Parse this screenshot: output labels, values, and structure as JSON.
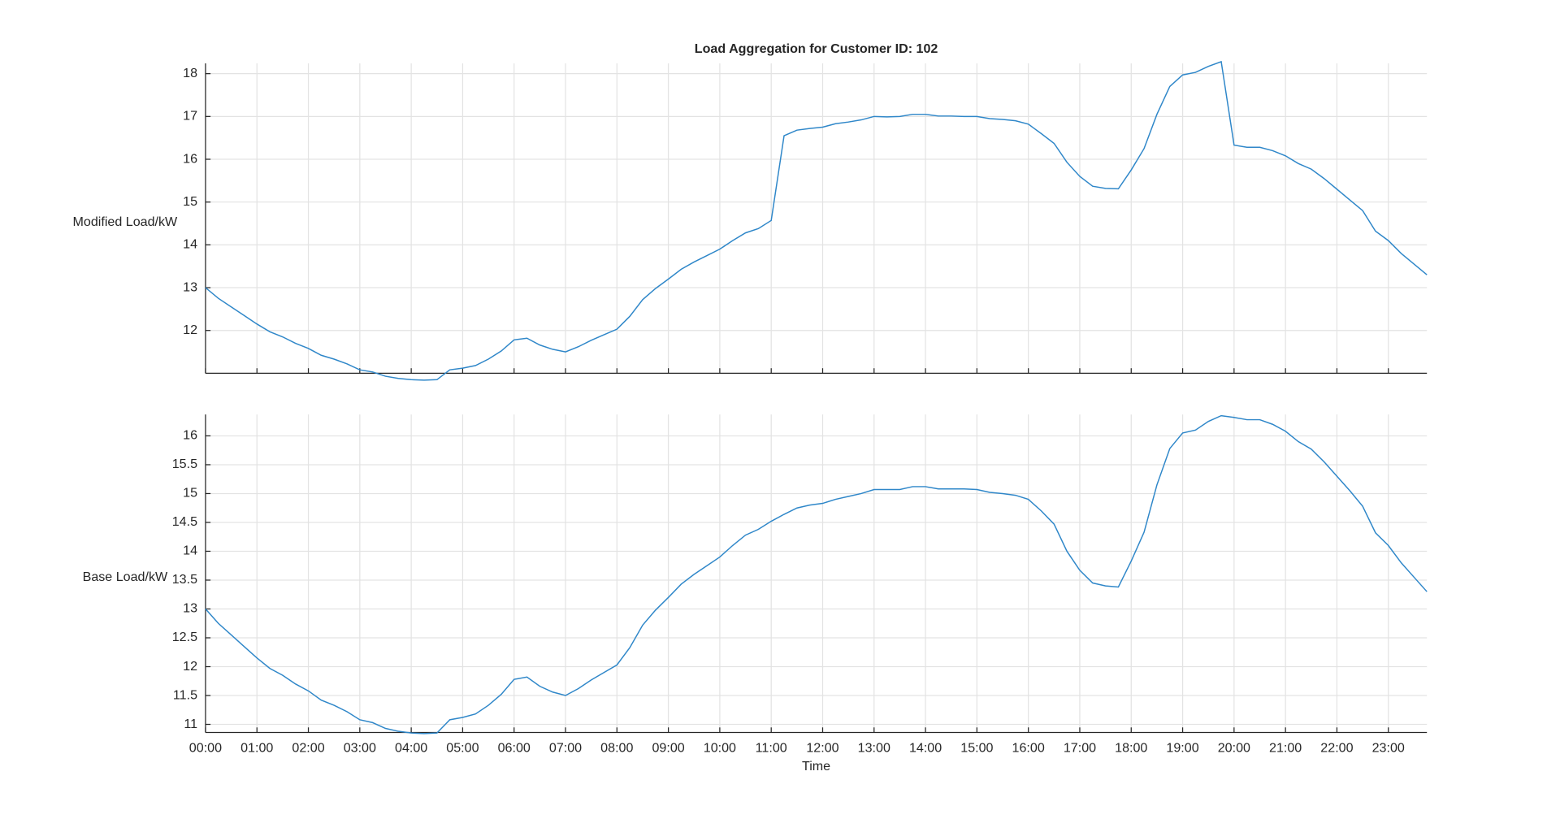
{
  "chart_data": [
    {
      "type": "line",
      "title": "Load Aggregation for Customer ID: 102",
      "ylabel": "Modified Load/kW",
      "x": [
        0,
        0.25,
        0.5,
        0.75,
        1,
        1.25,
        1.5,
        1.75,
        2,
        2.25,
        2.5,
        2.75,
        3,
        3.25,
        3.5,
        3.75,
        4,
        4.25,
        4.5,
        4.75,
        5,
        5.25,
        5.5,
        5.75,
        6,
        6.25,
        6.5,
        6.75,
        7,
        7.25,
        7.5,
        7.75,
        8,
        8.25,
        8.5,
        8.75,
        9,
        9.25,
        9.5,
        9.75,
        10,
        10.25,
        10.5,
        10.75,
        11,
        11.25,
        11.5,
        11.75,
        12,
        12.25,
        12.5,
        12.75,
        13,
        13.25,
        13.5,
        13.75,
        14,
        14.25,
        14.5,
        14.75,
        15,
        15.25,
        15.5,
        15.75,
        16,
        16.25,
        16.5,
        16.75,
        17,
        17.25,
        17.5,
        17.75,
        18,
        18.25,
        18.5,
        18.75,
        19,
        19.25,
        19.5,
        19.75,
        20,
        20.25,
        20.5,
        20.75,
        21,
        21.25,
        21.5,
        21.75,
        22,
        22.25,
        22.5,
        22.75,
        23,
        23.25,
        23.5,
        23.75
      ],
      "series": [
        {
          "color": "#2f87c9",
          "values": [
            13.0,
            12.75,
            12.55,
            12.35,
            12.15,
            11.97,
            11.85,
            11.7,
            11.58,
            11.42,
            11.33,
            11.22,
            11.08,
            11.03,
            10.93,
            10.88,
            10.85,
            10.84,
            10.85,
            11.08,
            11.12,
            11.18,
            11.33,
            11.52,
            11.78,
            11.82,
            11.66,
            11.56,
            11.5,
            11.62,
            11.77,
            11.9,
            12.03,
            12.33,
            12.72,
            12.98,
            13.2,
            13.43,
            13.6,
            13.75,
            13.9,
            14.1,
            14.28,
            14.38,
            14.57,
            16.55,
            16.68,
            16.72,
            16.75,
            16.83,
            16.87,
            16.92,
            17.0,
            16.99,
            17.0,
            17.05,
            17.05,
            17.01,
            17.01,
            17.0,
            17.0,
            16.95,
            16.93,
            16.9,
            16.82,
            16.6,
            16.37,
            15.93,
            15.6,
            15.37,
            15.32,
            15.31,
            15.75,
            16.25,
            17.05,
            17.7,
            17.97,
            18.03,
            18.17,
            18.28,
            16.33,
            16.28,
            16.28,
            16.2,
            16.08,
            15.9,
            15.77,
            15.55,
            15.3,
            15.05,
            14.8,
            14.32,
            14.1,
            13.8,
            13.55,
            13.3
          ]
        }
      ],
      "xlim": [
        0,
        23.75
      ],
      "xticks": [
        0,
        1,
        2,
        3,
        4,
        5,
        6,
        7,
        8,
        9,
        10,
        11,
        12,
        13,
        14,
        15,
        16,
        17,
        18,
        19,
        20,
        21,
        22,
        23
      ],
      "ylim": [
        11,
        18.24
      ],
      "yticks": [
        12,
        13,
        14,
        15,
        16,
        17,
        18
      ],
      "grid": true
    },
    {
      "type": "line",
      "ylabel": "Base Load/kW",
      "xlabel": "Time",
      "x": [
        0,
        0.25,
        0.5,
        0.75,
        1,
        1.25,
        1.5,
        1.75,
        2,
        2.25,
        2.5,
        2.75,
        3,
        3.25,
        3.5,
        3.75,
        4,
        4.25,
        4.5,
        4.75,
        5,
        5.25,
        5.5,
        5.75,
        6,
        6.25,
        6.5,
        6.75,
        7,
        7.25,
        7.5,
        7.75,
        8,
        8.25,
        8.5,
        8.75,
        9,
        9.25,
        9.5,
        9.75,
        10,
        10.25,
        10.5,
        10.75,
        11,
        11.25,
        11.5,
        11.75,
        12,
        12.25,
        12.5,
        12.75,
        13,
        13.25,
        13.5,
        13.75,
        14,
        14.25,
        14.5,
        14.75,
        15,
        15.25,
        15.5,
        15.75,
        16,
        16.25,
        16.5,
        16.75,
        17,
        17.25,
        17.5,
        17.75,
        18,
        18.25,
        18.5,
        18.75,
        19,
        19.25,
        19.5,
        19.75,
        20,
        20.25,
        20.5,
        20.75,
        21,
        21.25,
        21.5,
        21.75,
        22,
        22.25,
        22.5,
        22.75,
        23,
        23.25,
        23.5,
        23.75
      ],
      "series": [
        {
          "color": "#2f87c9",
          "values": [
            13.0,
            12.75,
            12.55,
            12.35,
            12.15,
            11.97,
            11.85,
            11.7,
            11.58,
            11.42,
            11.33,
            11.22,
            11.08,
            11.03,
            10.93,
            10.88,
            10.85,
            10.84,
            10.85,
            11.08,
            11.12,
            11.18,
            11.33,
            11.52,
            11.78,
            11.82,
            11.66,
            11.56,
            11.5,
            11.62,
            11.77,
            11.9,
            12.03,
            12.33,
            12.72,
            12.98,
            13.2,
            13.43,
            13.6,
            13.75,
            13.9,
            14.1,
            14.28,
            14.38,
            14.52,
            14.64,
            14.75,
            14.8,
            14.83,
            14.9,
            14.95,
            15.0,
            15.07,
            15.07,
            15.07,
            15.12,
            15.12,
            15.08,
            15.08,
            15.08,
            15.07,
            15.02,
            15.0,
            14.97,
            14.9,
            14.7,
            14.47,
            14.0,
            13.67,
            13.45,
            13.4,
            13.38,
            13.83,
            14.33,
            15.15,
            15.78,
            16.05,
            16.1,
            16.25,
            16.35,
            16.32,
            16.28,
            16.28,
            16.2,
            16.08,
            15.9,
            15.77,
            15.55,
            15.3,
            15.05,
            14.78,
            14.32,
            14.1,
            13.8,
            13.55,
            13.3
          ]
        }
      ],
      "xlim": [
        0,
        23.75
      ],
      "xticks": [
        {
          "value": 0,
          "label": "00:00"
        },
        {
          "value": 1,
          "label": "01:00"
        },
        {
          "value": 2,
          "label": "02:00"
        },
        {
          "value": 3,
          "label": "03:00"
        },
        {
          "value": 4,
          "label": "04:00"
        },
        {
          "value": 5,
          "label": "05:00"
        },
        {
          "value": 6,
          "label": "06:00"
        },
        {
          "value": 7,
          "label": "07:00"
        },
        {
          "value": 8,
          "label": "08:00"
        },
        {
          "value": 9,
          "label": "09:00"
        },
        {
          "value": 10,
          "label": "10:00"
        },
        {
          "value": 11,
          "label": "11:00"
        },
        {
          "value": 12,
          "label": "12:00"
        },
        {
          "value": 13,
          "label": "13:00"
        },
        {
          "value": 14,
          "label": "14:00"
        },
        {
          "value": 15,
          "label": "15:00"
        },
        {
          "value": 16,
          "label": "16:00"
        },
        {
          "value": 17,
          "label": "17:00"
        },
        {
          "value": 18,
          "label": "18:00"
        },
        {
          "value": 19,
          "label": "19:00"
        },
        {
          "value": 20,
          "label": "20:00"
        },
        {
          "value": 21,
          "label": "21:00"
        },
        {
          "value": 22,
          "label": "22:00"
        },
        {
          "value": 23,
          "label": "23:00"
        }
      ],
      "ylim": [
        10.86,
        16.37
      ],
      "yticks": [
        11,
        11.5,
        12,
        12.5,
        13,
        13.5,
        14,
        14.5,
        15,
        15.5,
        16
      ],
      "grid": true
    }
  ]
}
